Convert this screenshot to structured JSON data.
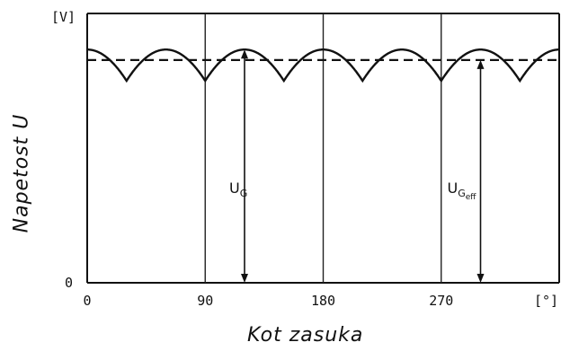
{
  "chart_data": {
    "type": "line",
    "title": "",
    "xlabel": "Kot  zasuka",
    "ylabel": "Napetost  U",
    "x_unit": "[°]",
    "y_unit": "[V]",
    "xlim": [
      0,
      360
    ],
    "ylim": [
      0,
      1
    ],
    "x_ticks": [
      "0",
      "90",
      "180",
      "270"
    ],
    "y_ticks": [
      "0"
    ],
    "grid": {
      "vertical_at": [
        90,
        180,
        270
      ]
    },
    "series": [
      {
        "name": "",
        "style": "solid",
        "shape": "rectified ripple, arc peaks with cusps every 60°",
        "x": [
          0,
          30,
          60,
          90,
          120,
          150,
          180,
          210,
          240,
          270,
          300,
          330,
          360
        ],
        "y": [
          0.866,
          0.75,
          0.866,
          0.75,
          0.866,
          0.75,
          0.866,
          0.75,
          0.866,
          0.75,
          0.866,
          0.75,
          0.866
        ],
        "peak": 0.866,
        "valley": 0.75,
        "cusp_phase_deg": 30,
        "period_deg": 60
      },
      {
        "name": "",
        "style": "dashed",
        "y": 0.827
      }
    ],
    "annotations": [
      {
        "main": "U",
        "sub": "G",
        "arrow_x": 120,
        "from": 0,
        "to": 0.866
      },
      {
        "main": "U",
        "sub": "G",
        "sub2": "eff",
        "arrow_x": 300,
        "from": 0,
        "to": 0.827
      }
    ]
  }
}
